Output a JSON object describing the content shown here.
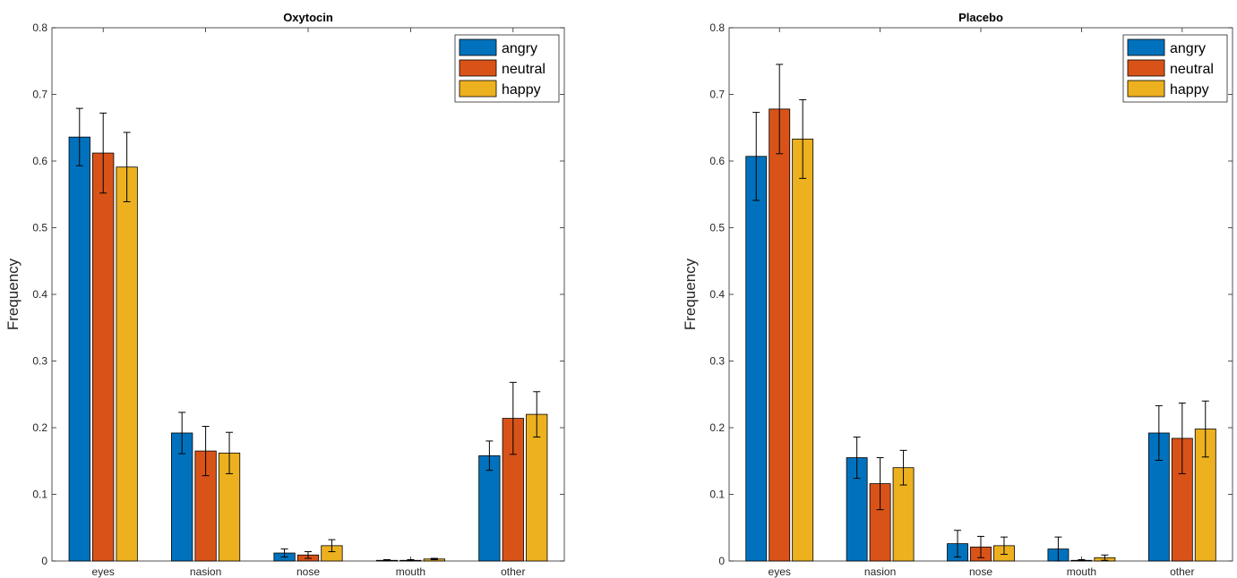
{
  "chart_data": [
    {
      "type": "bar",
      "title": "Oxytocin",
      "xlabel": "",
      "ylabel": "Frequency",
      "categories": [
        "eyes",
        "nasion",
        "nose",
        "mouth",
        "other"
      ],
      "ylim": [
        0,
        0.8
      ],
      "yticks": [
        "0",
        "0.1",
        "0.2",
        "0.3",
        "0.4",
        "0.5",
        "0.6",
        "0.7",
        "0.8"
      ],
      "legend_position": "top-right",
      "series": [
        {
          "name": "angry",
          "color": "#0072BD",
          "values": [
            0.636,
            0.192,
            0.012,
            0.001,
            0.158
          ],
          "errors": [
            0.043,
            0.031,
            0.006,
            0.001,
            0.022
          ]
        },
        {
          "name": "neutral",
          "color": "#D95319",
          "values": [
            0.612,
            0.165,
            0.009,
            0.001,
            0.214
          ],
          "errors": [
            0.06,
            0.037,
            0.005,
            0.001,
            0.054
          ]
        },
        {
          "name": "happy",
          "color": "#EDB120",
          "values": [
            0.591,
            0.162,
            0.023,
            0.003,
            0.22
          ],
          "errors": [
            0.052,
            0.031,
            0.009,
            0.001,
            0.034
          ]
        }
      ]
    },
    {
      "type": "bar",
      "title": "Placebo",
      "xlabel": "",
      "ylabel": "Frequency",
      "categories": [
        "eyes",
        "nasion",
        "nose",
        "mouth",
        "other"
      ],
      "ylim": [
        0,
        0.8
      ],
      "yticks": [
        "0",
        "0.1",
        "0.2",
        "0.3",
        "0.4",
        "0.5",
        "0.6",
        "0.7",
        "0.8"
      ],
      "legend_position": "top-right",
      "series": [
        {
          "name": "angry",
          "color": "#0072BD",
          "values": [
            0.607,
            0.155,
            0.026,
            0.018,
            0.192
          ],
          "errors": [
            0.066,
            0.031,
            0.02,
            0.018,
            0.041
          ]
        },
        {
          "name": "neutral",
          "color": "#D95319",
          "values": [
            0.678,
            0.116,
            0.021,
            0.001,
            0.184
          ],
          "errors": [
            0.067,
            0.039,
            0.016,
            0.001,
            0.053
          ]
        },
        {
          "name": "happy",
          "color": "#EDB120",
          "values": [
            0.633,
            0.14,
            0.023,
            0.005,
            0.198
          ],
          "errors": [
            0.059,
            0.026,
            0.013,
            0.004,
            0.042
          ]
        }
      ]
    }
  ]
}
